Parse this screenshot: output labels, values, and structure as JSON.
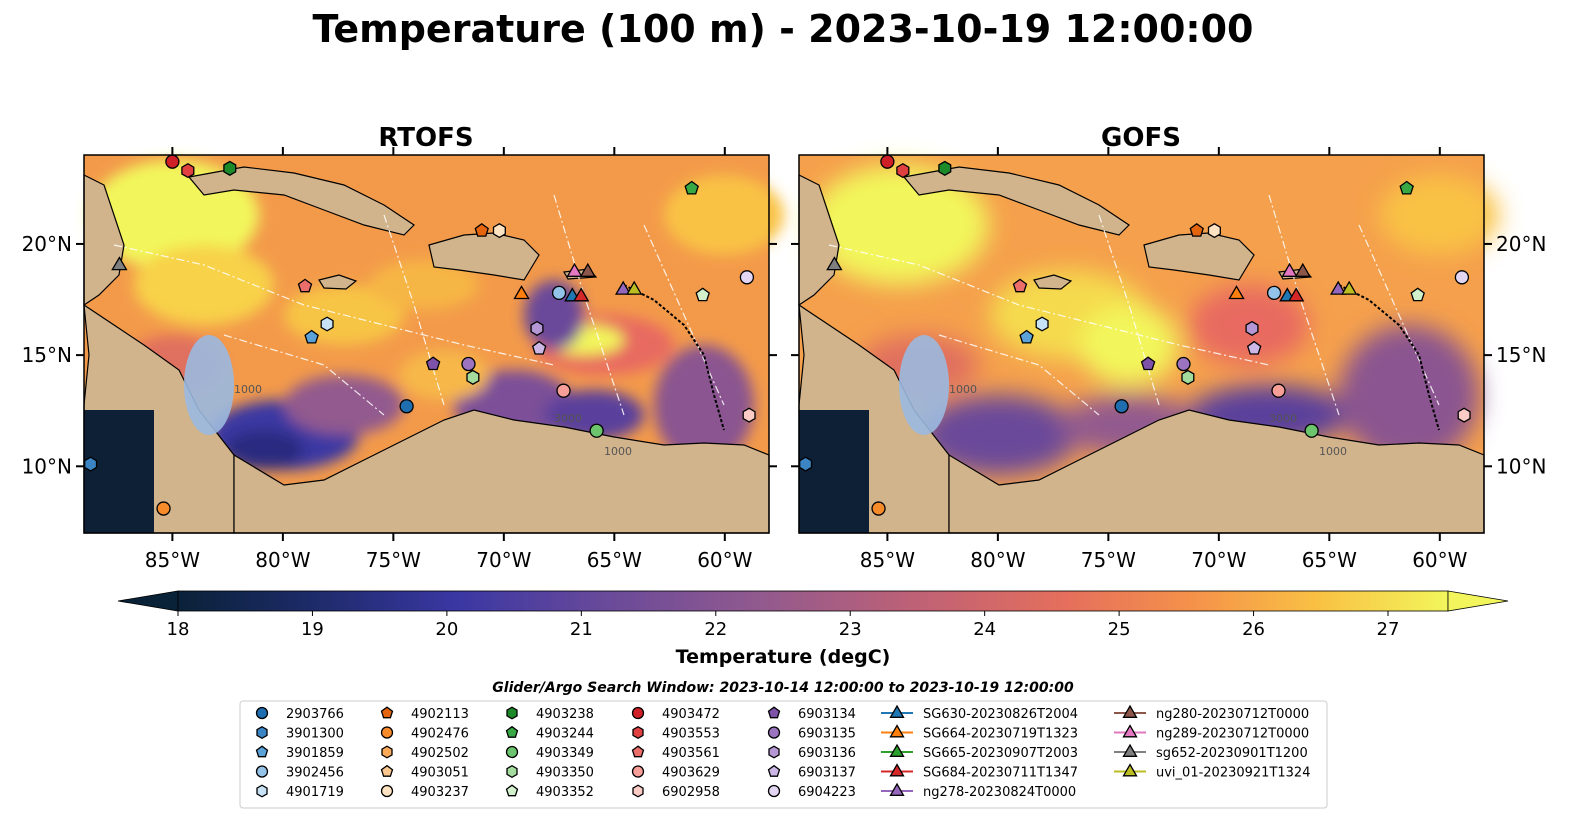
{
  "figure": {
    "title": "Temperature (100 m) - 2023-10-19 12:00:00"
  },
  "panels": [
    {
      "title": "RTOFS",
      "id": "rtofs"
    },
    {
      "title": "GOFS",
      "id": "gofs"
    }
  ],
  "map": {
    "lon_range": [
      -89,
      -58
    ],
    "lat_range": [
      7,
      24
    ],
    "lon_ticks": [
      {
        "value": -85,
        "label": "85°W"
      },
      {
        "value": -80,
        "label": "80°W"
      },
      {
        "value": -75,
        "label": "75°W"
      },
      {
        "value": -70,
        "label": "70°W"
      },
      {
        "value": -65,
        "label": "65°W"
      },
      {
        "value": -60,
        "label": "60°W"
      }
    ],
    "lat_ticks": [
      {
        "value": 20,
        "label": "20°N"
      },
      {
        "value": 15,
        "label": "15°N"
      },
      {
        "value": 10,
        "label": "10°N"
      }
    ],
    "contour_labels": [
      "1000",
      "3000",
      "1000"
    ],
    "colors": {
      "land": "#d2b48c",
      "shelf": "#9ab9e0",
      "deep": "#0d2036"
    }
  },
  "colorbar": {
    "label": "Temperature (degC)",
    "min": 18,
    "max": 27,
    "ticks": [
      "18",
      "19",
      "20",
      "21",
      "22",
      "23",
      "24",
      "25",
      "26",
      "27"
    ],
    "extend": "both",
    "colormap": "thermal"
  },
  "search_window": {
    "text": "Glider/Argo Search Window: 2023-10-14 12:00:00 to 2023-10-19 12:00:00"
  },
  "legend": {
    "columns": [
      [
        {
          "label": "2903766",
          "marker": "circle",
          "color": "#1f6fb0"
        },
        {
          "label": "3901300",
          "marker": "hexagon",
          "color": "#3b85c4"
        },
        {
          "label": "3901859",
          "marker": "pentagon",
          "color": "#5aa2d8"
        },
        {
          "label": "3902456",
          "marker": "circle",
          "color": "#93c3e8"
        },
        {
          "label": "4901719",
          "marker": "hexagon",
          "color": "#c8e2f5"
        }
      ],
      [
        {
          "label": "4902113",
          "marker": "pentagon",
          "color": "#e5650f"
        },
        {
          "label": "4902476",
          "marker": "circle",
          "color": "#f78b2a"
        },
        {
          "label": "4902502",
          "marker": "hexagon",
          "color": "#fbaa5a"
        },
        {
          "label": "4903051",
          "marker": "pentagon",
          "color": "#fdc88f"
        },
        {
          "label": "4903237",
          "marker": "circle",
          "color": "#fde3c2"
        }
      ],
      [
        {
          "label": "4903238",
          "marker": "hexagon",
          "color": "#1d8a2a"
        },
        {
          "label": "4903244",
          "marker": "pentagon",
          "color": "#38a844"
        },
        {
          "label": "4903349",
          "marker": "circle",
          "color": "#6cc56d"
        },
        {
          "label": "4903350",
          "marker": "hexagon",
          "color": "#a3dc9c"
        },
        {
          "label": "4903352",
          "marker": "pentagon",
          "color": "#d2f0cb"
        }
      ],
      [
        {
          "label": "4903472",
          "marker": "circle",
          "color": "#cf2027"
        },
        {
          "label": "4903553",
          "marker": "hexagon",
          "color": "#e0403f"
        },
        {
          "label": "4903561",
          "marker": "pentagon",
          "color": "#ec6e6a"
        },
        {
          "label": "4903629",
          "marker": "circle",
          "color": "#f69e97"
        },
        {
          "label": "6902958",
          "marker": "hexagon",
          "color": "#fbcbc6"
        }
      ],
      [
        {
          "label": "6903134",
          "marker": "pentagon",
          "color": "#7e52a8"
        },
        {
          "label": "6903135",
          "marker": "circle",
          "color": "#9b73c0"
        },
        {
          "label": "6903136",
          "marker": "hexagon",
          "color": "#b597d5"
        },
        {
          "label": "6903137",
          "marker": "pentagon",
          "color": "#cdb7e6"
        },
        {
          "label": "6904223",
          "marker": "circle",
          "color": "#e3d6f3"
        }
      ],
      [
        {
          "label": "SG630-20230826T2004",
          "marker": "triangle",
          "color": "#1f77b4"
        },
        {
          "label": "SG664-20230719T1323",
          "marker": "triangle",
          "color": "#ff7f0e"
        },
        {
          "label": "SG665-20230907T2003",
          "marker": "triangle",
          "color": "#2ca02c"
        },
        {
          "label": "SG684-20230711T1347",
          "marker": "triangle",
          "color": "#d62728"
        },
        {
          "label": "ng278-20230824T0000",
          "marker": "triangle",
          "color": "#9467bd"
        }
      ],
      [
        {
          "label": "ng280-20230712T0000",
          "marker": "triangle",
          "color": "#8c564b"
        },
        {
          "label": "ng289-20230712T0000",
          "marker": "triangle",
          "color": "#e377c2"
        },
        {
          "label": "sg652-20230901T1200",
          "marker": "triangle",
          "color": "#7f7f7f"
        },
        {
          "label": "uvi_01-20230921T1324",
          "marker": "triangle",
          "color": "#bcbd22"
        }
      ]
    ]
  },
  "markers": [
    {
      "lon": -85.0,
      "lat": 23.7,
      "shape": "circle",
      "color": "#cf2027"
    },
    {
      "lon": -84.3,
      "lat": 23.3,
      "shape": "hexagon",
      "color": "#e0403f"
    },
    {
      "lon": -82.4,
      "lat": 23.4,
      "shape": "hexagon",
      "color": "#1d8a2a"
    },
    {
      "lon": -61.5,
      "lat": 22.5,
      "shape": "pentagon",
      "color": "#38a844"
    },
    {
      "lon": -71.0,
      "lat": 20.6,
      "shape": "pentagon",
      "color": "#e5650f"
    },
    {
      "lon": -70.2,
      "lat": 20.6,
      "shape": "hexagon",
      "color": "#fde3c2"
    },
    {
      "lon": -87.4,
      "lat": 19.1,
      "shape": "triangle",
      "color": "#7f7f7f"
    },
    {
      "lon": -79.0,
      "lat": 18.1,
      "shape": "pentagon",
      "color": "#ec6e6a"
    },
    {
      "lon": -69.2,
      "lat": 17.8,
      "shape": "triangle",
      "color": "#ff7f0e"
    },
    {
      "lon": -67.5,
      "lat": 17.8,
      "shape": "circle",
      "color": "#93c3e8"
    },
    {
      "lon": -66.8,
      "lat": 18.8,
      "shape": "triangle",
      "color": "#e377c2"
    },
    {
      "lon": -66.2,
      "lat": 18.8,
      "shape": "triangle",
      "color": "#8c564b"
    },
    {
      "lon": -66.9,
      "lat": 17.7,
      "shape": "triangle",
      "color": "#1f77b4"
    },
    {
      "lon": -66.5,
      "lat": 17.7,
      "shape": "triangle",
      "color": "#d62728"
    },
    {
      "lon": -64.6,
      "lat": 18.0,
      "shape": "triangle",
      "color": "#9467bd"
    },
    {
      "lon": -64.1,
      "lat": 18.0,
      "shape": "triangle",
      "color": "#bcbd22"
    },
    {
      "lon": -61.0,
      "lat": 17.7,
      "shape": "pentagon",
      "color": "#d2f0cb"
    },
    {
      "lon": -59.0,
      "lat": 18.5,
      "shape": "circle",
      "color": "#e3d6f3"
    },
    {
      "lon": -78.0,
      "lat": 16.4,
      "shape": "hexagon",
      "color": "#c8e2f5"
    },
    {
      "lon": -78.7,
      "lat": 15.8,
      "shape": "pentagon",
      "color": "#5aa2d8"
    },
    {
      "lon": -68.5,
      "lat": 16.2,
      "shape": "hexagon",
      "color": "#b597d5"
    },
    {
      "lon": -68.4,
      "lat": 15.3,
      "shape": "pentagon",
      "color": "#cdb7e6"
    },
    {
      "lon": -73.2,
      "lat": 14.6,
      "shape": "pentagon",
      "color": "#7e52a8"
    },
    {
      "lon": -71.6,
      "lat": 14.6,
      "shape": "circle",
      "color": "#9b73c0"
    },
    {
      "lon": -71.4,
      "lat": 14.0,
      "shape": "hexagon",
      "color": "#a3dc9c"
    },
    {
      "lon": -67.3,
      "lat": 13.4,
      "shape": "circle",
      "color": "#f69e97"
    },
    {
      "lon": -74.4,
      "lat": 12.7,
      "shape": "circle",
      "color": "#1f6fb0"
    },
    {
      "lon": -65.8,
      "lat": 11.6,
      "shape": "circle",
      "color": "#6cc56d"
    },
    {
      "lon": -58.9,
      "lat": 12.3,
      "shape": "hexagon",
      "color": "#fbcbc6"
    },
    {
      "lon": -88.7,
      "lat": 10.1,
      "shape": "hexagon",
      "color": "#3b85c4"
    },
    {
      "lon": -85.4,
      "lat": 8.1,
      "shape": "circle",
      "color": "#f78b2a"
    }
  ]
}
